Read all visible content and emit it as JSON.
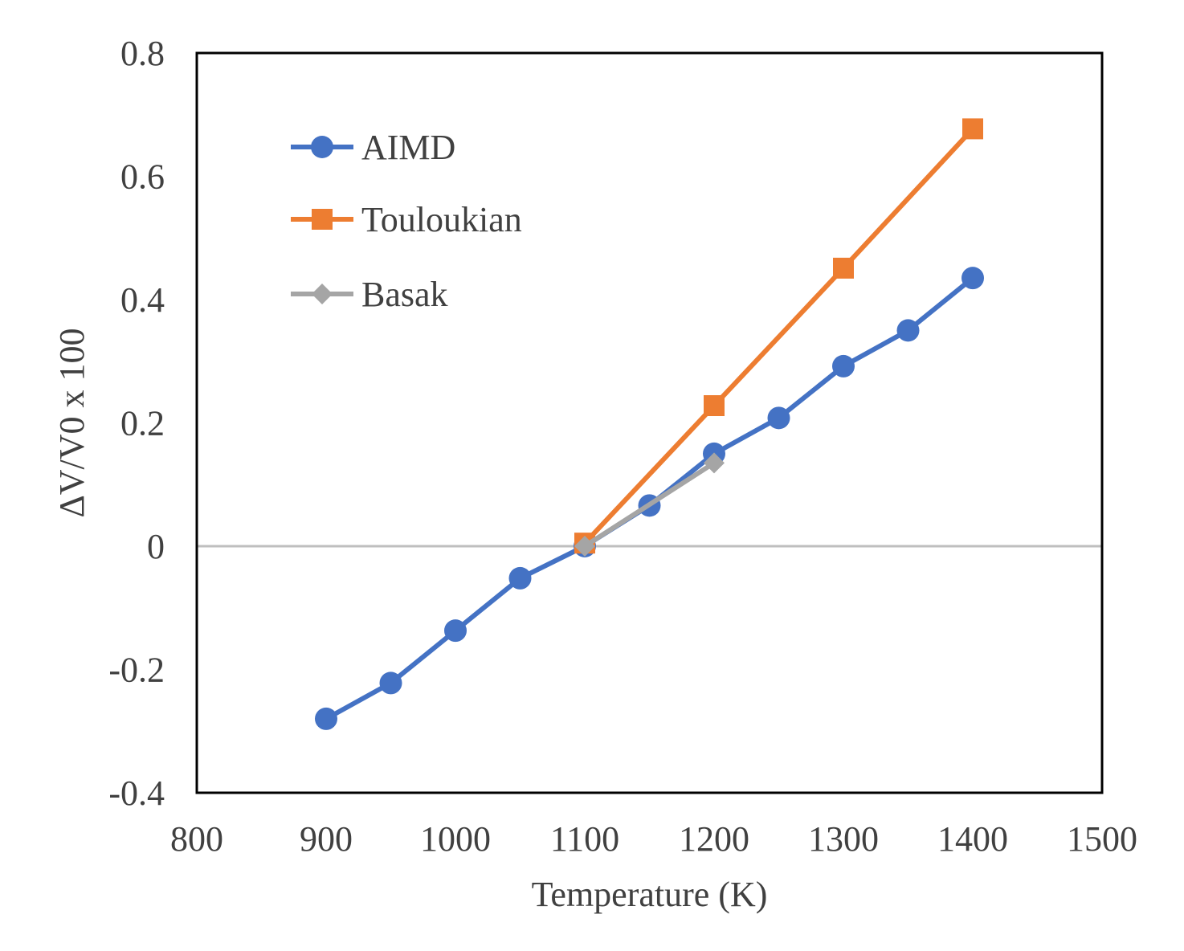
{
  "chart_data": {
    "type": "line",
    "xlabel": "Temperature (K)",
    "ylabel": "ΔV/V0 x 100",
    "xlim": [
      800,
      1500
    ],
    "ylim": [
      -0.4,
      0.8
    ],
    "x_ticks": [
      800,
      900,
      1000,
      1100,
      1200,
      1300,
      1400,
      1500
    ],
    "y_ticks": [
      -0.4,
      -0.2,
      0,
      0.2,
      0.4,
      0.6,
      0.8
    ],
    "x_tick_labels": [
      "800",
      "900",
      "1000",
      "1100",
      "1200",
      "1300",
      "1400",
      "1500"
    ],
    "y_tick_labels": [
      "-0.4",
      "-0.2",
      "0",
      "0.2",
      "0.4",
      "0.6",
      "0.8"
    ],
    "grid": false,
    "zero_line": true,
    "legend_position": "top-left",
    "series": [
      {
        "name": "AIMD",
        "color": "#4472c4",
        "marker": "circle",
        "x": [
          900,
          950,
          1000,
          1050,
          1100,
          1150,
          1200,
          1250,
          1300,
          1350,
          1400
        ],
        "y": [
          -0.28,
          -0.222,
          -0.137,
          -0.052,
          0.0,
          0.066,
          0.15,
          0.208,
          0.292,
          0.35,
          0.435
        ]
      },
      {
        "name": "Touloukian",
        "color": "#ed7d31",
        "marker": "square",
        "x": [
          1100,
          1200,
          1300,
          1400
        ],
        "y": [
          0.005,
          0.228,
          0.451,
          0.677
        ]
      },
      {
        "name": "Basak",
        "color": "#a5a5a5",
        "marker": "diamond",
        "x": [
          1100,
          1200
        ],
        "y": [
          0.0,
          0.135
        ]
      }
    ]
  }
}
